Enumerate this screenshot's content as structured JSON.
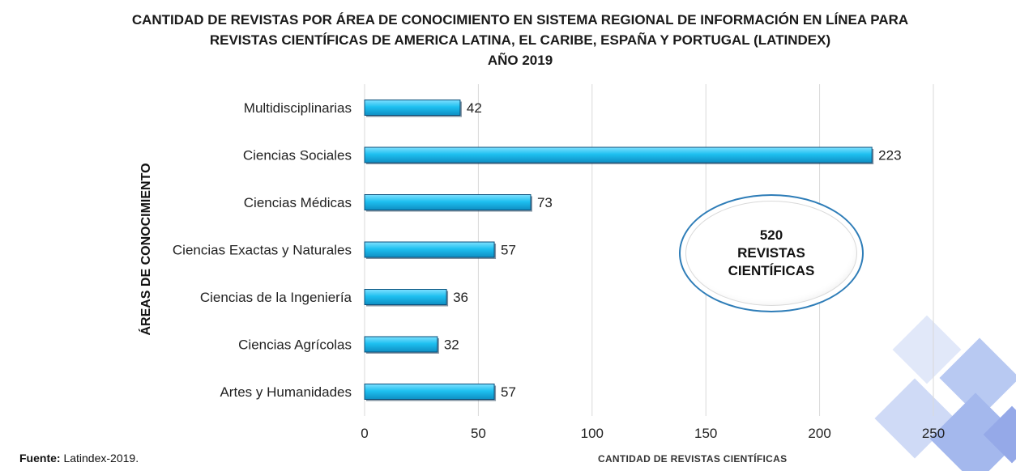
{
  "header": {
    "title_lines": [
      "CANTIDAD DE REVISTAS POR ÁREA DE CONOCIMIENTO EN SISTEMA REGIONAL DE INFORMACIÓN EN LÍNEA PARA",
      "REVISTAS CIENTÍFICAS DE AMERICA LATINA, EL CARIBE, ESPAÑA Y PORTUGAL (LATINDEX)",
      "AÑO 2019"
    ]
  },
  "callout": {
    "number": "520",
    "line1": "REVISTAS",
    "line2": "CIENTÍFICAS"
  },
  "footer": {
    "source_label": "Fuente:",
    "source_text": " Latindex-2019."
  },
  "colors": {
    "bar_fill": "#1ec0f0",
    "bar_edge": "#0a4f7a",
    "grid": "#d9d9d9"
  },
  "chart_data": {
    "type": "bar",
    "orientation": "horizontal",
    "categories": [
      "Multidisciplinarias",
      "Ciencias Sociales",
      "Ciencias Médicas",
      "Ciencias Exactas y Naturales",
      "Ciencias de la Ingeniería",
      "Ciencias Agrícolas",
      "Artes y Humanidades"
    ],
    "values": [
      42,
      223,
      73,
      57,
      36,
      32,
      57
    ],
    "xlabel": "CANTIDAD DE REVISTAS CIENTÍFICAS",
    "ylabel": "ÁREAS DE CONOCIMIENTO",
    "xlim": [
      0,
      250
    ],
    "xticks": [
      0,
      50,
      100,
      150,
      200,
      250
    ],
    "grid": true,
    "legend": "none"
  }
}
